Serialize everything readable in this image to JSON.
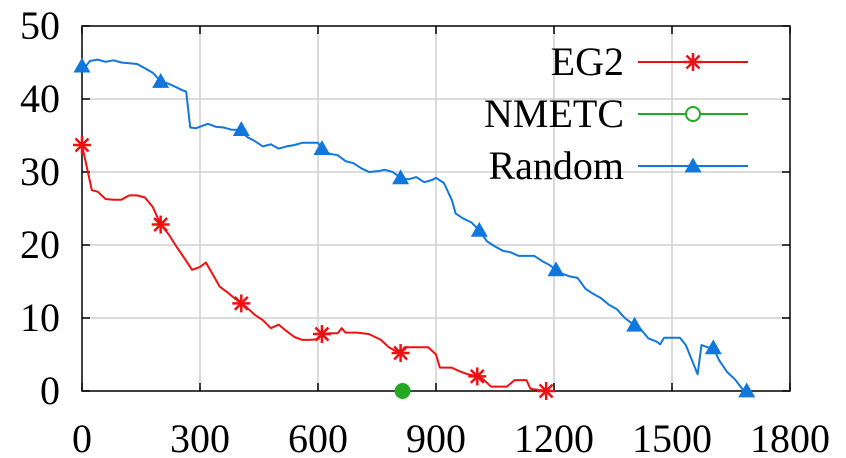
{
  "chart_data": {
    "type": "line",
    "title": "",
    "xlabel": "",
    "ylabel": "",
    "xlim": [
      0,
      1800
    ],
    "ylim": [
      0,
      50
    ],
    "xticks": [
      "0",
      "300",
      "600",
      "900",
      "1200",
      "1500",
      "1800"
    ],
    "yticks": [
      "0",
      "10",
      "20",
      "30",
      "40",
      "50"
    ],
    "grid": true,
    "legend_position": "top-right",
    "series": [
      {
        "name": "EG2",
        "color": "#ee1111",
        "marker": "asterisk",
        "points": [
          [
            0,
            33.7
          ],
          [
            15,
            30
          ],
          [
            25,
            27.5
          ],
          [
            40,
            27.3
          ],
          [
            60,
            26.3
          ],
          [
            80,
            26.2
          ],
          [
            100,
            26.2
          ],
          [
            120,
            26.8
          ],
          [
            140,
            26.8
          ],
          [
            160,
            26.5
          ],
          [
            180,
            25.2
          ],
          [
            200,
            22.8
          ],
          [
            220,
            21.5
          ],
          [
            240,
            19.8
          ],
          [
            260,
            18.2
          ],
          [
            280,
            16.6
          ],
          [
            300,
            17
          ],
          [
            315,
            17.6
          ],
          [
            330,
            16.2
          ],
          [
            350,
            14.3
          ],
          [
            370,
            13.5
          ],
          [
            390,
            12.6
          ],
          [
            405,
            12
          ],
          [
            420,
            11.4
          ],
          [
            440,
            10.4
          ],
          [
            460,
            9.7
          ],
          [
            480,
            8.6
          ],
          [
            500,
            9.1
          ],
          [
            520,
            8.2
          ],
          [
            540,
            7.4
          ],
          [
            560,
            7
          ],
          [
            580,
            7
          ],
          [
            600,
            7.1
          ],
          [
            610,
            7.8
          ],
          [
            630,
            7.9
          ],
          [
            650,
            7.9
          ],
          [
            660,
            8.6
          ],
          [
            670,
            8
          ],
          [
            700,
            8
          ],
          [
            730,
            7.8
          ],
          [
            760,
            7
          ],
          [
            780,
            6
          ],
          [
            800,
            5.4
          ],
          [
            810,
            5.2
          ],
          [
            820,
            6
          ],
          [
            860,
            6
          ],
          [
            880,
            6
          ],
          [
            900,
            5
          ],
          [
            910,
            3.2
          ],
          [
            940,
            3.2
          ],
          [
            960,
            2.7
          ],
          [
            980,
            2.3
          ],
          [
            1000,
            2.1
          ],
          [
            1020,
            1.6
          ],
          [
            1040,
            0.6
          ],
          [
            1060,
            0.6
          ],
          [
            1080,
            0.6
          ],
          [
            1100,
            1.5
          ],
          [
            1130,
            1.5
          ],
          [
            1140,
            0.3
          ],
          [
            1180,
            0
          ]
        ],
        "marker_points": [
          [
            0,
            33.7
          ],
          [
            200,
            22.8
          ],
          [
            405,
            12
          ],
          [
            610,
            7.8
          ],
          [
            810,
            5.2
          ],
          [
            1005,
            2
          ],
          [
            1180,
            0
          ]
        ]
      },
      {
        "name": "NMETC",
        "color": "#22aa22",
        "marker": "circle",
        "points": [
          [
            815,
            0
          ]
        ],
        "marker_points": [
          [
            815,
            0
          ]
        ]
      },
      {
        "name": "Random",
        "color": "#1177dd",
        "marker": "triangle",
        "points": [
          [
            0,
            44.5
          ],
          [
            10,
            44.5
          ],
          [
            20,
            45.2
          ],
          [
            40,
            45.4
          ],
          [
            60,
            45.1
          ],
          [
            80,
            45.3
          ],
          [
            100,
            45
          ],
          [
            120,
            44.9
          ],
          [
            140,
            44.8
          ],
          [
            160,
            44.2
          ],
          [
            180,
            43.6
          ],
          [
            200,
            42.4
          ],
          [
            220,
            42.1
          ],
          [
            240,
            41.6
          ],
          [
            255,
            41.2
          ],
          [
            265,
            41
          ],
          [
            275,
            36.1
          ],
          [
            290,
            36
          ],
          [
            300,
            36.2
          ],
          [
            320,
            36.6
          ],
          [
            340,
            36.2
          ],
          [
            360,
            36.1
          ],
          [
            380,
            35.8
          ],
          [
            400,
            35.8
          ],
          [
            420,
            34.8
          ],
          [
            440,
            34.2
          ],
          [
            460,
            33.5
          ],
          [
            480,
            33.8
          ],
          [
            500,
            33.2
          ],
          [
            520,
            33.5
          ],
          [
            540,
            33.7
          ],
          [
            560,
            34
          ],
          [
            580,
            34
          ],
          [
            600,
            34
          ],
          [
            610,
            33.2
          ],
          [
            630,
            32.5
          ],
          [
            650,
            32.3
          ],
          [
            670,
            31.5
          ],
          [
            690,
            31.2
          ],
          [
            710,
            30.5
          ],
          [
            730,
            30
          ],
          [
            750,
            30.1
          ],
          [
            770,
            30.3
          ],
          [
            790,
            30
          ],
          [
            810,
            29.2
          ],
          [
            830,
            29
          ],
          [
            850,
            29.3
          ],
          [
            870,
            28.6
          ],
          [
            890,
            28.9
          ],
          [
            900,
            29.2
          ],
          [
            920,
            28.5
          ],
          [
            940,
            26.2
          ],
          [
            950,
            24.3
          ],
          [
            970,
            23.6
          ],
          [
            990,
            23.1
          ],
          [
            1010,
            22
          ],
          [
            1030,
            20.5
          ],
          [
            1050,
            19.8
          ],
          [
            1070,
            19.2
          ],
          [
            1090,
            19
          ],
          [
            1110,
            18.5
          ],
          [
            1130,
            18.5
          ],
          [
            1150,
            18.5
          ],
          [
            1170,
            17.8
          ],
          [
            1190,
            17.2
          ],
          [
            1205,
            16.6
          ],
          [
            1220,
            16.1
          ],
          [
            1240,
            15.7
          ],
          [
            1260,
            15.5
          ],
          [
            1280,
            14
          ],
          [
            1300,
            13.3
          ],
          [
            1320,
            12.7
          ],
          [
            1340,
            11.8
          ],
          [
            1360,
            11.2
          ],
          [
            1380,
            10
          ],
          [
            1405,
            9
          ],
          [
            1420,
            8.5
          ],
          [
            1440,
            7.2
          ],
          [
            1460,
            6.8
          ],
          [
            1470,
            6.4
          ],
          [
            1480,
            7.3
          ],
          [
            1500,
            7.3
          ],
          [
            1520,
            7.3
          ],
          [
            1535,
            6.3
          ],
          [
            1550,
            4.3
          ],
          [
            1560,
            3
          ],
          [
            1565,
            2.3
          ],
          [
            1575,
            6.3
          ],
          [
            1590,
            6
          ],
          [
            1605,
            5.9
          ],
          [
            1620,
            4.2
          ],
          [
            1640,
            2.6
          ],
          [
            1660,
            1.6
          ],
          [
            1680,
            0.2
          ],
          [
            1690,
            0
          ]
        ],
        "marker_points": [
          [
            0,
            44.5
          ],
          [
            200,
            42.4
          ],
          [
            405,
            35.8
          ],
          [
            610,
            33.2
          ],
          [
            810,
            29.2
          ],
          [
            1010,
            22
          ],
          [
            1205,
            16.6
          ],
          [
            1405,
            9
          ],
          [
            1605,
            5.9
          ],
          [
            1690,
            0
          ]
        ]
      }
    ]
  }
}
